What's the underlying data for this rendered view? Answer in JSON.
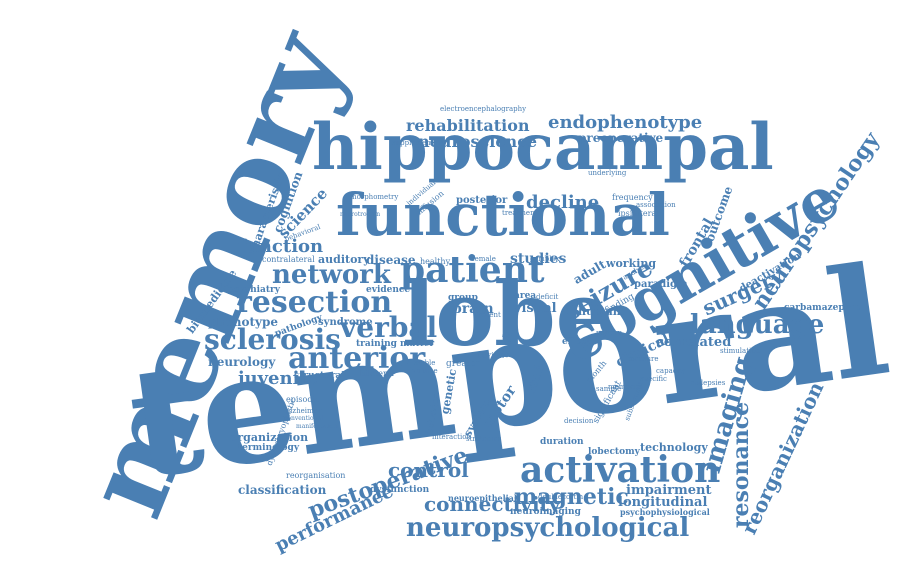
{
  "color": "#4a7fb3",
  "words": {
    "memory": "memory",
    "temporal": "temporal",
    "hippocampal": "hippocampal",
    "functional": "functional",
    "lobe": "lobe",
    "cognitive": "cognitive",
    "patient": "patient",
    "network": "network",
    "resection": "resection",
    "sclerosis": "sclerosis",
    "verbal": "verbal",
    "anterior": "anterior",
    "activation": "activation",
    "neuropsychological": "neuropsychological",
    "seizure": "seizure",
    "language": "language",
    "neuropsychology": "neuropsychology",
    "imaging": "imaging",
    "resonance": "resonance",
    "magnetic": "magnetic",
    "postoperative": "postoperative",
    "connectivity": "connectivity",
    "control": "control",
    "performance": "performance",
    "reorganization": "reorganization",
    "surgery": "surgery",
    "juvenile": "juvenile",
    "function": "function",
    "rehabilitation": "rehabilitation",
    "endophenotype": "endophenotype",
    "neuroscience": "neuroscience",
    "preoperative": "preoperative",
    "decline": "decline",
    "science": "science",
    "cognition": "cognition",
    "characteristic": "characteristic",
    "biomedicine": "biomedicine",
    "phenotype": "phenotype",
    "neurology": "neurology",
    "psychiatry": "psychiatry",
    "pathology": "pathology",
    "syndrome": "syndrome",
    "disease": "disease",
    "studies": "studies",
    "brain": "brain",
    "visual": "visual",
    "frontal": "frontal",
    "outcome": "outcome",
    "deactivation": "deactivation",
    "correlated": "correlated",
    "clinical": "clinical",
    "human": "human",
    "adult": "adult",
    "working": "working",
    "paradigm": "paradigm",
    "carbamazepine": "carbamazepine",
    "impairment": "impairment",
    "longitudinal": "longitudinal",
    "technology": "technology",
    "classification": "classification",
    "organization": "organization",
    "terminology": "terminology",
    "reorganisation": "reorganisation",
    "dysfunction": "dysfunction",
    "neuroimaging": "neuroimaging",
    "neuroepithelial": "neuroepithelial",
    "psychophysiological": "psychophysiological",
    "lobectomy": "lobectomy",
    "duration": "duration",
    "electroencephalography": "electroencephalography",
    "supplementary": "supplementary",
    "morphometry": "morphometry",
    "underlying": "underlying",
    "frequency": "frequency",
    "association": "association",
    "ipsilateral": "ipsilateral",
    "posterior": "posterior",
    "treatment": "treatment",
    "auditory": "auditory",
    "contralateral": "contralateral",
    "behavioral": "behavioral",
    "training": "training",
    "evidence": "evidence",
    "structural": "structural",
    "matter": "matter",
    "review": "review",
    "greater": "greater",
    "group": "group",
    "area": "area",
    "deficit": "deficit",
    "effect": "effect",
    "finding": "finding",
    "motor": "motor",
    "system": "system",
    "study": "study",
    "genetic": "genetic",
    "behavior": "behavior",
    "episodic": "episodic",
    "alzheimer": "alzheimer",
    "dysembryoplastic": "dysembryoplastic",
    "month": "month",
    "significant": "significant",
    "subsequent": "subsequent",
    "epilepsies": "epilepsies",
    "measure": "measure",
    "stimulation": "stimulation",
    "healthy": "healthy",
    "volume": "volume",
    "bilateral": "bilateral",
    "stable": "stable",
    "memories": "memories",
    "individual": "individual",
    "diffusion": "diffusion",
    "decision": "decision",
    "strategies": "strategies",
    "doublecortin": "doublecortin",
    "complex": "complex",
    "capacity": "capacity",
    "specific": "specific",
    "female": "female",
    "interaction": "interaction",
    "neurotrophin": "neurotrophin",
    "conventional": "conventional",
    "manifestation": "manifestation",
    "recent": "recent",
    "sample": "sample",
    "pattern": "pattern",
    "analysis": "analysis",
    "task": "task"
  }
}
